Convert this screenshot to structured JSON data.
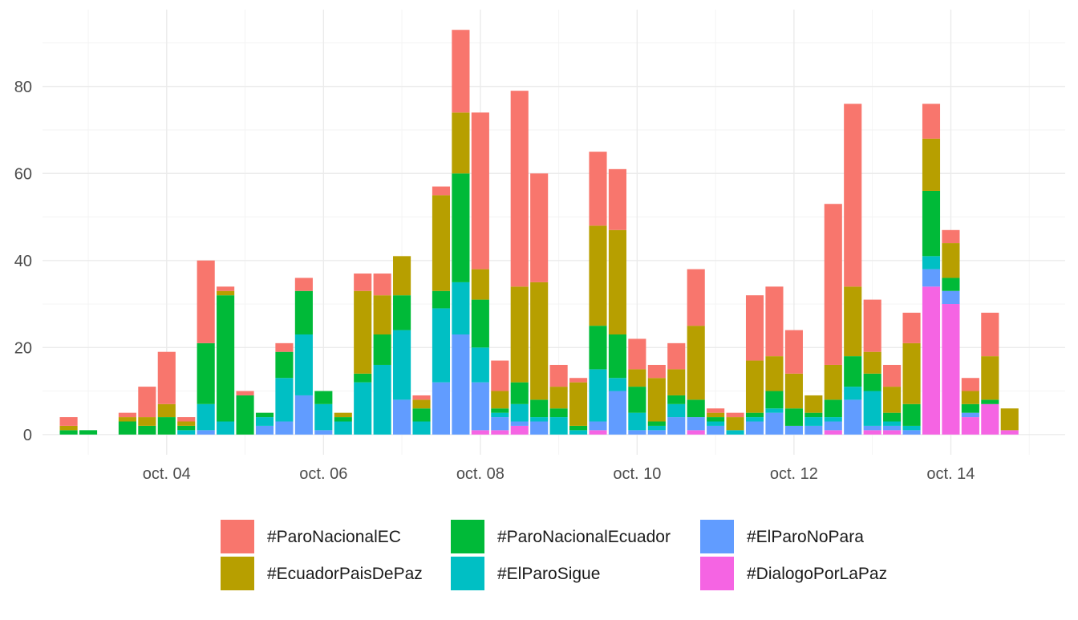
{
  "chart_data": {
    "type": "bar",
    "stacked": true,
    "title": "",
    "xlabel": "",
    "ylabel": "",
    "ylim": [
      -4.65,
      97.65
    ],
    "yticks": [
      0,
      20,
      40,
      60,
      80
    ],
    "x_axis": {
      "kind": "datetime",
      "range": [
        "2019-10-02 10:00",
        "2019-10-15 11:00"
      ],
      "ticks": [
        {
          "at": "2019-10-04 00:00",
          "label": "oct. 04"
        },
        {
          "at": "2019-10-06 00:00",
          "label": "oct. 06"
        },
        {
          "at": "2019-10-08 00:00",
          "label": "oct. 08"
        },
        {
          "at": "2019-10-10 00:00",
          "label": "oct. 10"
        },
        {
          "at": "2019-10-12 00:00",
          "label": "oct. 12"
        },
        {
          "at": "2019-10-14 00:00",
          "label": "oct. 14"
        }
      ],
      "minor_ticks": [
        "2019-10-03 00:00",
        "2019-10-05 00:00",
        "2019-10-07 00:00",
        "2019-10-09 00:00",
        "2019-10-11 00:00",
        "2019-10-13 00:00",
        "2019-10-15 00:00"
      ]
    },
    "grid": true,
    "legend_position": "bottom",
    "stack_order": [
      "#DialogoPorLaPaz",
      "#ElParoNoPara",
      "#ElParoSigue",
      "#ParoNacionalEcuador",
      "#EcuadorPaisDePaz",
      "#ParoNacionalEC"
    ],
    "legend_order": [
      "#ParoNacionalEC",
      "#EcuadorPaisDePaz",
      "#ParoNacionalEcuador",
      "#ElParoSigue",
      "#ElParoNoPara",
      "#DialogoPorLaPaz"
    ],
    "colors": {
      "#ParoNacionalEC": "#F8766D",
      "#EcuadorPaisDePaz": "#B79F00",
      "#ParoNacionalEcuador": "#00BA38",
      "#ElParoSigue": "#00BFC4",
      "#ElParoNoPara": "#619CFF",
      "#DialogoPorLaPaz": "#F564E3"
    },
    "bars": [
      {
        "x": "2019-10-02 18:00",
        "values": {
          "#ParoNacionalEC": 2,
          "#EcuadorPaisDePaz": 1,
          "#ParoNacionalEcuador": 1
        }
      },
      {
        "x": "2019-10-03 00:00",
        "values": {
          "#ParoNacionalEcuador": 1
        }
      },
      {
        "x": "2019-10-03 12:00",
        "values": {
          "#ParoNacionalEC": 1,
          "#EcuadorPaisDePaz": 1,
          "#ParoNacionalEcuador": 3
        }
      },
      {
        "x": "2019-10-03 18:00",
        "values": {
          "#ParoNacionalEC": 7,
          "#EcuadorPaisDePaz": 2,
          "#ParoNacionalEcuador": 2
        }
      },
      {
        "x": "2019-10-04 00:00",
        "values": {
          "#ParoNacionalEC": 12,
          "#EcuadorPaisDePaz": 3,
          "#ParoNacionalEcuador": 4
        }
      },
      {
        "x": "2019-10-04 06:00",
        "values": {
          "#ParoNacionalEC": 1,
          "#EcuadorPaisDePaz": 1,
          "#ParoNacionalEcuador": 1,
          "#ElParoSigue": 1
        }
      },
      {
        "x": "2019-10-04 12:00",
        "values": {
          "#ParoNacionalEC": 19,
          "#ParoNacionalEcuador": 14,
          "#ElParoSigue": 6,
          "#ElParoNoPara": 1
        }
      },
      {
        "x": "2019-10-04 18:00",
        "values": {
          "#ParoNacionalEC": 1,
          "#EcuadorPaisDePaz": 1,
          "#ParoNacionalEcuador": 29,
          "#ElParoSigue": 3
        }
      },
      {
        "x": "2019-10-05 00:00",
        "values": {
          "#ParoNacionalEC": 1,
          "#ParoNacionalEcuador": 9
        }
      },
      {
        "x": "2019-10-05 06:00",
        "values": {
          "#ParoNacionalEcuador": 1,
          "#ElParoSigue": 2,
          "#ElParoNoPara": 2
        }
      },
      {
        "x": "2019-10-05 12:00",
        "values": {
          "#ParoNacionalEC": 2,
          "#ParoNacionalEcuador": 6,
          "#ElParoSigue": 10,
          "#ElParoNoPara": 3
        }
      },
      {
        "x": "2019-10-05 18:00",
        "values": {
          "#ParoNacionalEC": 3,
          "#ParoNacionalEcuador": 10,
          "#ElParoSigue": 14,
          "#ElParoNoPara": 9
        }
      },
      {
        "x": "2019-10-06 00:00",
        "values": {
          "#ParoNacionalEcuador": 3,
          "#ElParoSigue": 6,
          "#ElParoNoPara": 1
        }
      },
      {
        "x": "2019-10-06 06:00",
        "values": {
          "#EcuadorPaisDePaz": 1,
          "#ParoNacionalEcuador": 1,
          "#ElParoSigue": 3
        }
      },
      {
        "x": "2019-10-06 12:00",
        "values": {
          "#ParoNacionalEC": 4,
          "#EcuadorPaisDePaz": 19,
          "#ParoNacionalEcuador": 2,
          "#ElParoSigue": 12
        }
      },
      {
        "x": "2019-10-06 18:00",
        "values": {
          "#ParoNacionalEC": 5,
          "#EcuadorPaisDePaz": 9,
          "#ParoNacionalEcuador": 7,
          "#ElParoSigue": 16
        }
      },
      {
        "x": "2019-10-07 00:00",
        "values": {
          "#EcuadorPaisDePaz": 9,
          "#ParoNacionalEcuador": 8,
          "#ElParoSigue": 16,
          "#ElParoNoPara": 8
        }
      },
      {
        "x": "2019-10-07 06:00",
        "values": {
          "#ParoNacionalEC": 1,
          "#EcuadorPaisDePaz": 2,
          "#ParoNacionalEcuador": 3,
          "#ElParoSigue": 3
        }
      },
      {
        "x": "2019-10-07 12:00",
        "values": {
          "#ParoNacionalEC": 2,
          "#EcuadorPaisDePaz": 22,
          "#ParoNacionalEcuador": 4,
          "#ElParoSigue": 17,
          "#ElParoNoPara": 12
        }
      },
      {
        "x": "2019-10-07 18:00",
        "values": {
          "#ParoNacionalEC": 19,
          "#EcuadorPaisDePaz": 14,
          "#ParoNacionalEcuador": 25,
          "#ElParoSigue": 12,
          "#ElParoNoPara": 23
        }
      },
      {
        "x": "2019-10-08 00:00",
        "values": {
          "#ParoNacionalEC": 36,
          "#EcuadorPaisDePaz": 7,
          "#ParoNacionalEcuador": 11,
          "#ElParoSigue": 8,
          "#ElParoNoPara": 11,
          "#DialogoPorLaPaz": 1
        }
      },
      {
        "x": "2019-10-08 06:00",
        "values": {
          "#ParoNacionalEC": 7,
          "#EcuadorPaisDePaz": 4,
          "#ParoNacionalEcuador": 1,
          "#ElParoSigue": 1,
          "#ElParoNoPara": 3,
          "#DialogoPorLaPaz": 1
        }
      },
      {
        "x": "2019-10-08 12:00",
        "values": {
          "#ParoNacionalEC": 45,
          "#EcuadorPaisDePaz": 22,
          "#ParoNacionalEcuador": 5,
          "#ElParoSigue": 4,
          "#ElParoNoPara": 1,
          "#DialogoPorLaPaz": 2
        }
      },
      {
        "x": "2019-10-08 18:00",
        "values": {
          "#ParoNacionalEC": 25,
          "#EcuadorPaisDePaz": 27,
          "#ParoNacionalEcuador": 4,
          "#ElParoSigue": 1,
          "#ElParoNoPara": 3
        }
      },
      {
        "x": "2019-10-09 00:00",
        "values": {
          "#ParoNacionalEC": 5,
          "#EcuadorPaisDePaz": 5,
          "#ParoNacionalEcuador": 2,
          "#ElParoSigue": 4
        }
      },
      {
        "x": "2019-10-09 06:00",
        "values": {
          "#ParoNacionalEC": 1,
          "#EcuadorPaisDePaz": 10,
          "#ParoNacionalEcuador": 1,
          "#ElParoSigue": 1
        }
      },
      {
        "x": "2019-10-09 12:00",
        "values": {
          "#ParoNacionalEC": 17,
          "#EcuadorPaisDePaz": 23,
          "#ParoNacionalEcuador": 10,
          "#ElParoSigue": 12,
          "#ElParoNoPara": 2,
          "#DialogoPorLaPaz": 1
        }
      },
      {
        "x": "2019-10-09 18:00",
        "values": {
          "#ParoNacionalEC": 14,
          "#EcuadorPaisDePaz": 24,
          "#ParoNacionalEcuador": 10,
          "#ElParoSigue": 3,
          "#ElParoNoPara": 10
        }
      },
      {
        "x": "2019-10-10 00:00",
        "values": {
          "#ParoNacionalEC": 7,
          "#EcuadorPaisDePaz": 4,
          "#ParoNacionalEcuador": 6,
          "#ElParoSigue": 4,
          "#ElParoNoPara": 1
        }
      },
      {
        "x": "2019-10-10 06:00",
        "values": {
          "#ParoNacionalEC": 3,
          "#EcuadorPaisDePaz": 10,
          "#ParoNacionalEcuador": 1,
          "#ElParoSigue": 1,
          "#ElParoNoPara": 1
        }
      },
      {
        "x": "2019-10-10 12:00",
        "values": {
          "#ParoNacionalEC": 6,
          "#EcuadorPaisDePaz": 6,
          "#ParoNacionalEcuador": 2,
          "#ElParoSigue": 3,
          "#ElParoNoPara": 4
        }
      },
      {
        "x": "2019-10-10 18:00",
        "values": {
          "#ParoNacionalEC": 13,
          "#EcuadorPaisDePaz": 17,
          "#ParoNacionalEcuador": 4,
          "#ElParoNoPara": 3,
          "#DialogoPorLaPaz": 1
        }
      },
      {
        "x": "2019-10-11 00:00",
        "values": {
          "#ParoNacionalEC": 1,
          "#EcuadorPaisDePaz": 1,
          "#ParoNacionalEcuador": 1,
          "#ElParoSigue": 1,
          "#ElParoNoPara": 2
        }
      },
      {
        "x": "2019-10-11 06:00",
        "values": {
          "#ParoNacionalEC": 1,
          "#EcuadorPaisDePaz": 3,
          "#ElParoSigue": 1
        }
      },
      {
        "x": "2019-10-11 12:00",
        "values": {
          "#ParoNacionalEC": 15,
          "#EcuadorPaisDePaz": 12,
          "#ParoNacionalEcuador": 1,
          "#ElParoSigue": 1,
          "#ElParoNoPara": 3
        }
      },
      {
        "x": "2019-10-11 18:00",
        "values": {
          "#ParoNacionalEC": 16,
          "#EcuadorPaisDePaz": 8,
          "#ParoNacionalEcuador": 4,
          "#ElParoSigue": 1,
          "#ElParoNoPara": 5
        }
      },
      {
        "x": "2019-10-12 00:00",
        "values": {
          "#ParoNacionalEC": 10,
          "#EcuadorPaisDePaz": 8,
          "#ParoNacionalEcuador": 4,
          "#ElParoNoPara": 2
        }
      },
      {
        "x": "2019-10-12 06:00",
        "values": {
          "#EcuadorPaisDePaz": 4,
          "#ParoNacionalEcuador": 1,
          "#ElParoSigue": 2,
          "#ElParoNoPara": 2
        }
      },
      {
        "x": "2019-10-12 12:00",
        "values": {
          "#ParoNacionalEC": 37,
          "#EcuadorPaisDePaz": 8,
          "#ParoNacionalEcuador": 4,
          "#ElParoSigue": 1,
          "#ElParoNoPara": 2,
          "#DialogoPorLaPaz": 1
        }
      },
      {
        "x": "2019-10-12 18:00",
        "values": {
          "#ParoNacionalEC": 42,
          "#EcuadorPaisDePaz": 16,
          "#ParoNacionalEcuador": 7,
          "#ElParoSigue": 3,
          "#ElParoNoPara": 8
        }
      },
      {
        "x": "2019-10-13 00:00",
        "values": {
          "#ParoNacionalEC": 12,
          "#EcuadorPaisDePaz": 5,
          "#ParoNacionalEcuador": 4,
          "#ElParoSigue": 8,
          "#ElParoNoPara": 1,
          "#DialogoPorLaPaz": 1
        }
      },
      {
        "x": "2019-10-13 06:00",
        "values": {
          "#ParoNacionalEC": 5,
          "#EcuadorPaisDePaz": 6,
          "#ParoNacionalEcuador": 2,
          "#ElParoSigue": 1,
          "#ElParoNoPara": 1,
          "#DialogoPorLaPaz": 1
        }
      },
      {
        "x": "2019-10-13 12:00",
        "values": {
          "#ParoNacionalEC": 7,
          "#EcuadorPaisDePaz": 14,
          "#ParoNacionalEcuador": 5,
          "#ElParoSigue": 1,
          "#ElParoNoPara": 1
        }
      },
      {
        "x": "2019-10-13 18:00",
        "values": {
          "#ParoNacionalEC": 8,
          "#EcuadorPaisDePaz": 12,
          "#ParoNacionalEcuador": 15,
          "#ElParoSigue": 3,
          "#ElParoNoPara": 4,
          "#DialogoPorLaPaz": 34
        }
      },
      {
        "x": "2019-10-14 00:00",
        "values": {
          "#ParoNacionalEC": 3,
          "#EcuadorPaisDePaz": 8,
          "#ParoNacionalEcuador": 3,
          "#ElParoNoPara": 3,
          "#DialogoPorLaPaz": 30
        }
      },
      {
        "x": "2019-10-14 06:00",
        "values": {
          "#ParoNacionalEC": 3,
          "#EcuadorPaisDePaz": 3,
          "#ParoNacionalEcuador": 2,
          "#ElParoNoPara": 1,
          "#DialogoPorLaPaz": 4
        }
      },
      {
        "x": "2019-10-14 12:00",
        "values": {
          "#ParoNacionalEC": 10,
          "#EcuadorPaisDePaz": 10,
          "#ParoNacionalEcuador": 1,
          "#DialogoPorLaPaz": 7
        }
      },
      {
        "x": "2019-10-14 18:00",
        "values": {
          "#EcuadorPaisDePaz": 5,
          "#DialogoPorLaPaz": 1
        }
      }
    ]
  }
}
